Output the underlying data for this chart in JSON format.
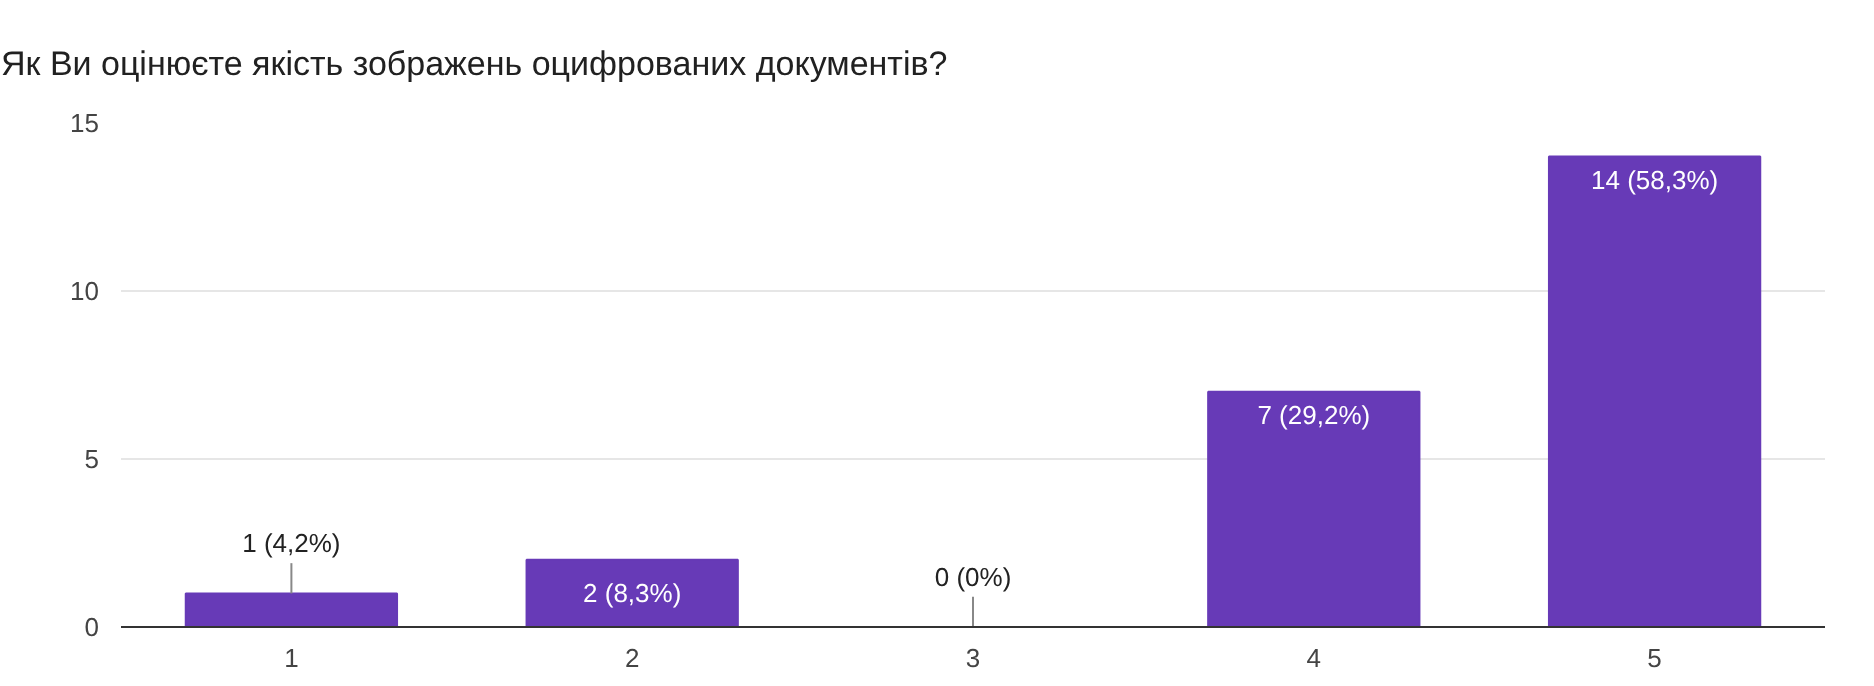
{
  "chart_data": {
    "type": "bar",
    "title": "Як Ви оцінюєте якість зображень оцифрованих документів?",
    "categories": [
      "1",
      "2",
      "3",
      "4",
      "5"
    ],
    "values": [
      1,
      2,
      0,
      7,
      14
    ],
    "color": "#673ab7",
    "value_labels": [
      "1 (4,2%)",
      "2 (8,3%)",
      "0 (0%)",
      "7 (29,2%)",
      "14 (58,3%)"
    ],
    "ylim": [
      0,
      15
    ],
    "yticks": [
      0,
      5,
      10,
      15
    ],
    "grid": "y"
  }
}
